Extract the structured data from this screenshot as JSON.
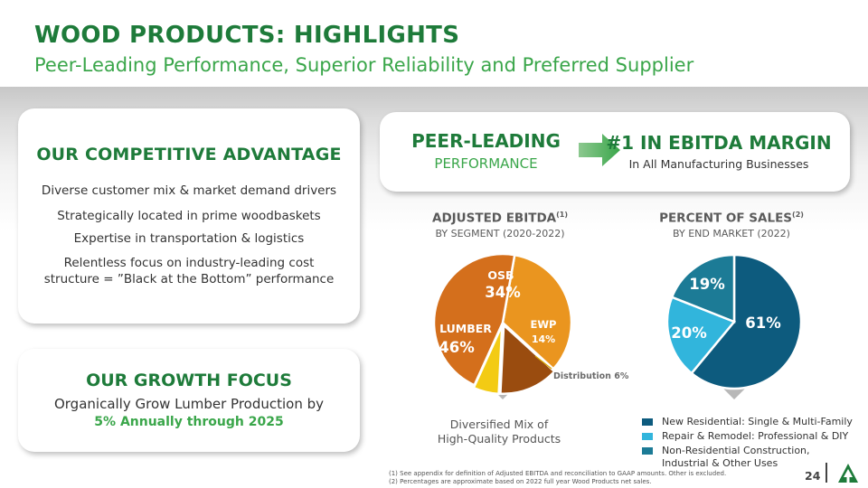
{
  "header": {
    "title": "WOOD PRODUCTS: HIGHLIGHTS",
    "subtitle": "Peer-Leading Performance, Superior Reliability and Preferred Supplier"
  },
  "advantage": {
    "title": "OUR COMPETITIVE ADVANTAGE",
    "items": [
      "Diverse customer mix & market demand drivers",
      "Strategically located in prime woodbaskets",
      "Expertise in transportation & logistics",
      "Relentless focus on industry-leading cost",
      "structure = ”Black at the Bottom” performance"
    ]
  },
  "growth": {
    "title": "OUR GROWTH FOCUS",
    "line1": "Organically Grow Lumber Production by",
    "line2": "5% Annually through 2025"
  },
  "peer": {
    "title": "PEER-LEADING",
    "subtitle": "PERFORMANCE",
    "arrow_icon": "arrow-right-icon",
    "ebitda_title": "#1 IN EBITDA MARGIN",
    "ebitda_sub": "In All Manufacturing Businesses"
  },
  "colors": {
    "brand_green": "#1e7b3a",
    "accent_green": "#3aa64a",
    "lumber": "#d46f1c",
    "osb": "#ea951f",
    "ewp": "#9a4c0f",
    "distribution": "#f3cb14",
    "new_residential": "#0d5b7e",
    "repair_remodel": "#31b5dc",
    "non_residential": "#1c7b96"
  },
  "chart_data": [
    {
      "type": "pie",
      "title": "ADJUSTED EBITDA",
      "title_sup": "(1)",
      "subtitle": "BY SEGMENT (2020-2022)",
      "caption_line1": "Diversified Mix of",
      "caption_line2": "High-Quality Products",
      "slices": [
        {
          "name": "OSB",
          "value": 34,
          "label": "34%",
          "color": "#ea951f"
        },
        {
          "name": "EWP",
          "value": 14,
          "label": "14%",
          "color": "#9a4c0f"
        },
        {
          "name": "Distribution",
          "value": 6,
          "label": "Distribution 6%",
          "color": "#f3cb14"
        },
        {
          "name": "LUMBER",
          "value": 46,
          "label": "46%",
          "color": "#d46f1c"
        }
      ]
    },
    {
      "type": "pie",
      "title": "PERCENT OF SALES",
      "title_sup": "(2)",
      "subtitle": "BY END MARKET (2022)",
      "slices": [
        {
          "name": "New Residential: Single & Multi-Family",
          "value": 61,
          "label": "61%",
          "color": "#0d5b7e"
        },
        {
          "name": "Repair & Remodel: Professional & DIY",
          "value": 20,
          "label": "20%",
          "color": "#31b5dc"
        },
        {
          "name": "Non-Residential Construction, Industrial & Other Uses",
          "value": 19,
          "label": "19%",
          "color": "#1c7b96"
        }
      ],
      "legend": [
        {
          "line1": "New Residential: Single & Multi-Family",
          "line2": "",
          "color": "#0d5b7e"
        },
        {
          "line1": "Repair & Remodel: Professional & DIY",
          "line2": "",
          "color": "#31b5dc"
        },
        {
          "line1": "Non-Residential Construction,",
          "line2": "Industrial & Other Uses",
          "color": "#1c7b96"
        }
      ]
    }
  ],
  "footnotes": [
    "(1) See appendix for definition of Adjusted EBITDA and reconciliation to GAAP amounts. Other is excluded.",
    "(2) Percentages are approximate based on 2022 full year Wood Products net sales."
  ],
  "page_number": "24",
  "logo_icon": "tree-logo-icon"
}
